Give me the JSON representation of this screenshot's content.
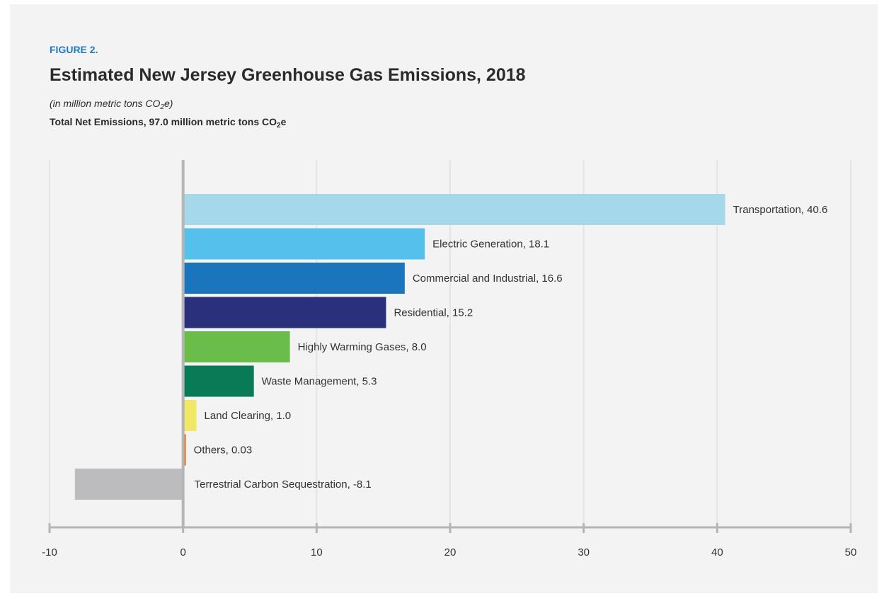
{
  "figure_label": "FIGURE 2.",
  "title": "Estimated New Jersey Greenhouse Gas Emissions, 2018",
  "subtitle": {
    "prefix": "(in million metric tons CO",
    "sub": "2",
    "suffix": "e)"
  },
  "total": {
    "prefix": "Total Net Emissions, 97.0 million metric tons CO",
    "sub": "2",
    "suffix": "e"
  },
  "chart_data": {
    "type": "bar",
    "orientation": "horizontal",
    "categories": [
      "Transportation",
      "Electric Generation",
      "Commercial and Industrial",
      "Residential",
      "Highly Warming Gases",
      "Waste Management",
      "Land Clearing",
      "Others",
      "Terrestrial Carbon Sequestration"
    ],
    "values": [
      40.6,
      18.1,
      16.6,
      15.2,
      8.0,
      5.3,
      1.0,
      0.03,
      -8.1
    ],
    "value_labels": [
      "Transportation, 40.6",
      "Electric Generation, 18.1",
      "Commercial and Industrial, 16.6",
      "Residential, 15.2",
      "Highly Warming Gases, 8.0",
      "Waste Management, 5.3",
      "Land Clearing, 1.0",
      "Others, 0.03",
      "Terrestrial Carbon Sequestration, -8.1"
    ],
    "colors": [
      "#a5d9ea",
      "#55c0ec",
      "#1b75bc",
      "#2a307c",
      "#6bbd4b",
      "#087a55",
      "#f3e866",
      "#e87722",
      "#bcbcbf"
    ],
    "xlim": [
      -10,
      50
    ],
    "xticks": [
      -10,
      0,
      10,
      20,
      30,
      40,
      50
    ],
    "xtick_labels": [
      "-10",
      "0",
      "10",
      "20",
      "30",
      "40",
      "50"
    ],
    "grid": true
  }
}
